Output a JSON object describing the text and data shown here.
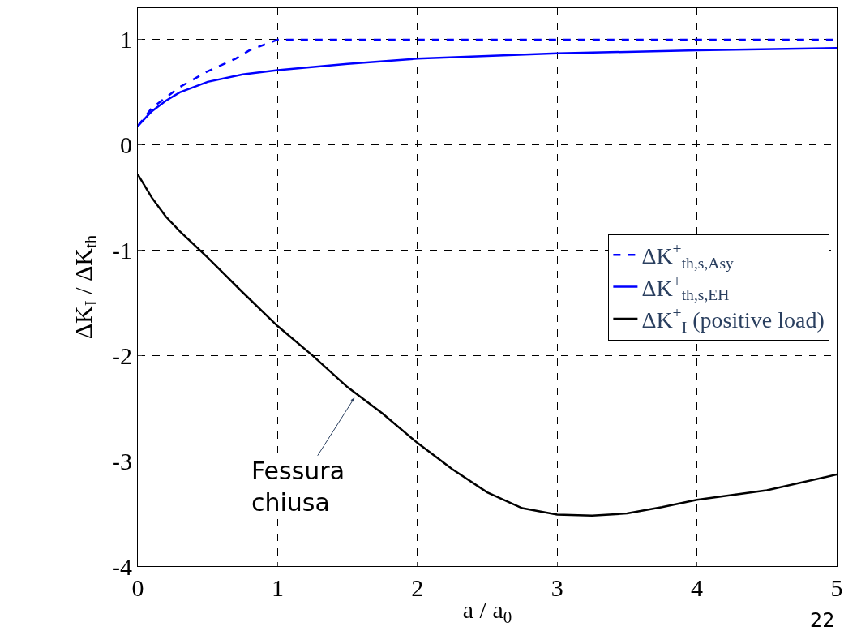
{
  "chart_data": {
    "type": "line",
    "xlabel": "a / a$_{0}$",
    "ylabel": "ΔK$_{I}$ / ΔK$_{th}$",
    "xlim": [
      0,
      5
    ],
    "ylim": [
      -4,
      1.3
    ],
    "xticks": [
      0,
      1,
      2,
      3,
      4,
      5
    ],
    "yticks": [
      -4,
      -3,
      -2,
      -1,
      0,
      1
    ],
    "grid": true,
    "legend": "right",
    "line_style": "solid",
    "marker": "none",
    "series": [
      {
        "name": "ΔK$^{+}$$_{th,s,Asy}$",
        "color": "#0000ff",
        "line_style": "dashed",
        "x": [
          0,
          0.1,
          0.2,
          0.3,
          0.5,
          0.7,
          0.8,
          1,
          5
        ],
        "values": [
          0.18,
          0.35,
          0.45,
          0.55,
          0.7,
          0.82,
          0.9,
          1.0,
          1.0
        ]
      },
      {
        "name": "ΔK$^{+}$$_{th,s,EH}$",
        "color": "#0000ff",
        "x": [
          0,
          0.1,
          0.2,
          0.3,
          0.5,
          0.75,
          1,
          1.5,
          2,
          3,
          4,
          5
        ],
        "values": [
          0.18,
          0.32,
          0.42,
          0.5,
          0.6,
          0.67,
          0.71,
          0.77,
          0.82,
          0.87,
          0.9,
          0.92
        ]
      },
      {
        "name": "ΔK$^{+}$$_{I}$ (positive load)",
        "color": "#000000",
        "x": [
          0,
          0.1,
          0.2,
          0.3,
          0.5,
          0.75,
          1,
          1.25,
          1.5,
          1.75,
          2,
          2.25,
          2.5,
          2.75,
          3,
          3.25,
          3.5,
          3.75,
          4,
          4.5,
          5
        ],
        "values": [
          -0.28,
          -0.5,
          -0.68,
          -0.82,
          -1.07,
          -1.4,
          -1.72,
          -2.0,
          -2.3,
          -2.55,
          -2.83,
          -3.08,
          -3.3,
          -3.45,
          -3.51,
          -3.52,
          -3.5,
          -3.44,
          -3.37,
          -3.28,
          -3.13
        ]
      }
    ],
    "annotations": [
      {
        "text": "Fessura chiusa",
        "x": 1.55,
        "y": -2.4
      },
      "22"
    ]
  }
}
